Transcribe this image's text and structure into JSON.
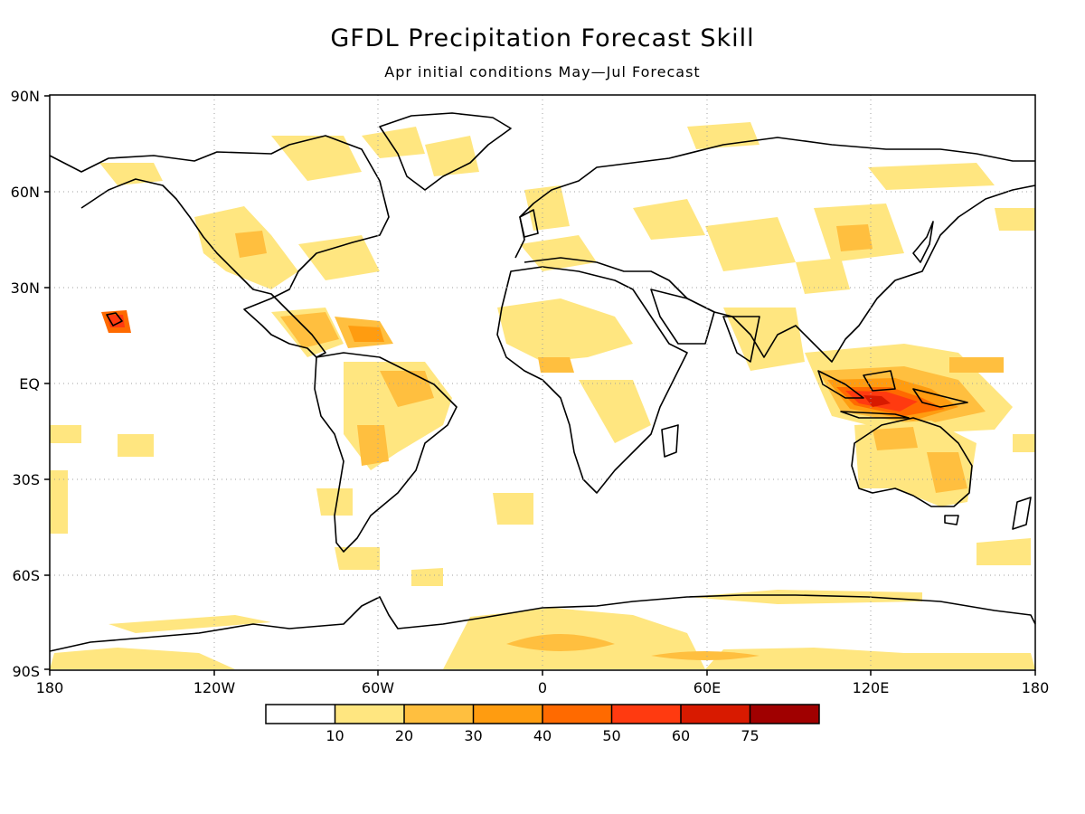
{
  "title": "GFDL Precipitation Forecast Skill",
  "subtitle": "Apr initial conditions   May—Jul Forecast",
  "map": {
    "projection": "equirectangular",
    "lat_ticks": [
      "90N",
      "60N",
      "30N",
      "EQ",
      "30S",
      "60S",
      "90S"
    ],
    "lon_ticks": [
      "180",
      "120W",
      "60W",
      "0",
      "60E",
      "120E",
      "180"
    ],
    "gridlines": true
  },
  "colorbar": {
    "thresholds": [
      "10",
      "20",
      "30",
      "40",
      "50",
      "60",
      "75"
    ],
    "colors": [
      "#ffffff",
      "#ffe680",
      "#ffbf3f",
      "#ff9c10",
      "#ff6a00",
      "#ff3a10",
      "#d81a00",
      "#a00000"
    ]
  }
}
